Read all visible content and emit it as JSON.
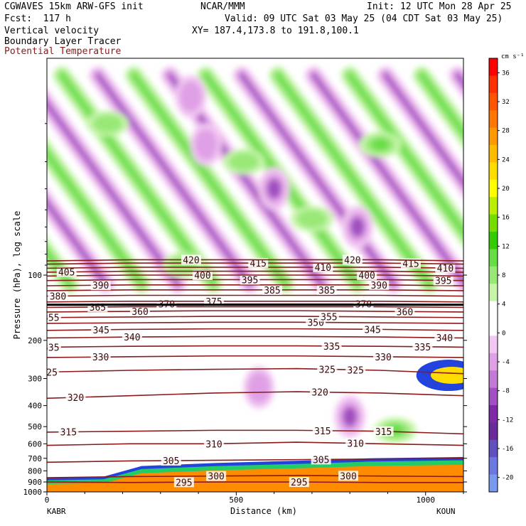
{
  "header": {
    "model": "CGWAVES 15km ARW-GFS init",
    "org": "NCAR/MMM",
    "init": "Init: 12 UTC Mon 28 Apr 25",
    "fcst": "Fcst:  117 h",
    "valid": "Valid: 09 UTC Sat 03 May 25 (04 CDT Sat 03 May 25)",
    "field1": "Vertical velocity",
    "field2": "Boundary Layer Tracer",
    "field3": "Potential Temperature",
    "xy": "XY= 187.4,173.8 to 191.8,100.1"
  },
  "colors": {
    "theta": "#8b1a1a",
    "pbl": "#ff8c00"
  },
  "chart_data": {
    "type": "heatmap",
    "xlabel": "Distance (km)",
    "ylabel": "Pressure (hPa), log scale",
    "xlim": [
      0,
      1100
    ],
    "ylim": [
      1000,
      10
    ],
    "y_scale": "log",
    "x_ticks": [
      0,
      500,
      1000
    ],
    "y_ticks": [
      100,
      200,
      300,
      400,
      500,
      600,
      700,
      800,
      900,
      1000
    ],
    "x_endpoint_labels": [
      "KABR",
      "KOUN"
    ],
    "colorbar": {
      "units": "cm s⁻¹",
      "labels": [
        36,
        32,
        28,
        24,
        20,
        16,
        12,
        8,
        4,
        0,
        -4,
        -8,
        -12,
        -16,
        -20
      ],
      "colors": [
        "#ff0000",
        "#ff3000",
        "#ff5500",
        "#ff7700",
        "#ff9900",
        "#ffbb00",
        "#ffdd00",
        "#ffff00",
        "#bbee00",
        "#77dd00",
        "#33cc00",
        "#66dd44",
        "#99e877",
        "#c6f5aa",
        "#ffffff",
        "#ffffff",
        "#f2c8f2",
        "#e0a0e6",
        "#c27ad4",
        "#a050c0",
        "#7e2aa8",
        "#6a2a9a",
        "#6050c0",
        "#6a78e0",
        "#7a9af0"
      ]
    },
    "theta_contours": [
      {
        "value": 295,
        "label_positions_km": [
          362,
          666
        ],
        "p_hpa": [
          900,
          905,
          900,
          900,
          905,
          905
        ]
      },
      {
        "value": 300,
        "label_positions_km": [
          447,
          796
        ],
        "p_hpa": [
          860,
          850,
          845,
          840,
          845,
          850
        ]
      },
      {
        "value": 305,
        "label_positions_km": [
          328,
          724
        ],
        "p_hpa": [
          730,
          720,
          715,
          710,
          705,
          700
        ]
      },
      {
        "value": 310,
        "label_positions_km": [
          441,
          815
        ],
        "p_hpa": [
          610,
          600,
          600,
          590,
          600,
          610
        ]
      },
      {
        "value": 315,
        "label_positions_km": [
          57,
          728,
          889
        ],
        "p_hpa": [
          530,
          525,
          520,
          520,
          525,
          540
        ]
      },
      {
        "value": 320,
        "label_positions_km": [
          76,
          721
        ],
        "p_hpa": [
          370,
          360,
          350,
          345,
          350,
          360
        ]
      },
      {
        "value": 325,
        "label_positions_km": [
          6,
          740,
          815
        ],
        "p_hpa": [
          280,
          275,
          272,
          270,
          275,
          285
        ]
      },
      {
        "value": 330,
        "label_positions_km": [
          142,
          888
        ],
        "p_hpa": [
          240,
          238,
          236,
          236,
          238,
          240
        ]
      },
      {
        "value": 335,
        "label_positions_km": [
          11,
          752,
          992
        ],
        "p_hpa": [
          215,
          213,
          212,
          212,
          213,
          215
        ]
      },
      {
        "value": 340,
        "label_positions_km": [
          225,
          1050
        ],
        "p_hpa": [
          195,
          193,
          192,
          192,
          193,
          195
        ]
      },
      {
        "value": 345,
        "label_positions_km": [
          143,
          860
        ],
        "p_hpa": [
          180,
          178,
          177,
          177,
          178,
          180
        ]
      },
      {
        "value": 350,
        "label_positions_km": [
          710
        ],
        "p_hpa": [
          167,
          166,
          165,
          165,
          166,
          167
        ]
      },
      {
        "value": 355,
        "label_positions_km": [
          11,
          745
        ],
        "p_hpa": [
          157,
          156,
          155,
          155,
          156,
          157
        ]
      },
      {
        "value": 360,
        "label_positions_km": [
          246,
          945
        ],
        "p_hpa": [
          148,
          147,
          146,
          146,
          147,
          148
        ]
      },
      {
        "value": 365,
        "label_positions_km": [
          134
        ],
        "p_hpa": [
          141,
          140,
          140,
          140,
          140,
          141
        ]
      },
      {
        "value": 370,
        "label_positions_km": [
          316,
          836
        ],
        "p_hpa": [
          137,
          136,
          136,
          136,
          136,
          137
        ]
      },
      {
        "value": 375,
        "label_positions_km": [
          441
        ],
        "p_hpa": [
          133,
          132,
          132,
          132,
          132,
          133
        ]
      },
      {
        "value": 380,
        "label_positions_km": [
          29
        ],
        "p_hpa": [
          125,
          124,
          124,
          124,
          124,
          125
        ]
      },
      {
        "value": 385,
        "label_positions_km": [
          595,
          739
        ],
        "p_hpa": [
          118,
          117,
          117,
          117,
          117,
          118
        ]
      },
      {
        "value": 390,
        "label_positions_km": [
          142,
          877
        ],
        "p_hpa": [
          112,
          111,
          111,
          111,
          111,
          112
        ]
      },
      {
        "value": 395,
        "label_positions_km": [
          536,
          1047
        ],
        "p_hpa": [
          106,
          105,
          105,
          105,
          105,
          106
        ]
      },
      {
        "value": 400,
        "label_positions_km": [
          411,
          845
        ],
        "p_hpa": [
          101,
          100,
          100,
          100,
          100,
          101
        ]
      },
      {
        "value": 405,
        "label_positions_km": [
          52
        ],
        "p_hpa": [
          97,
          96,
          96,
          96,
          96,
          97
        ]
      },
      {
        "value": 410,
        "label_positions_km": [
          729,
          1052
        ],
        "p_hpa": [
          93,
          92,
          92,
          92,
          92,
          93
        ]
      },
      {
        "value": 415,
        "label_positions_km": [
          558,
          961
        ],
        "p_hpa": [
          89,
          88,
          88,
          88,
          88,
          89
        ]
      },
      {
        "value": 420,
        "label_positions_km": [
          381,
          807
        ],
        "p_hpa": [
          86,
          85,
          85,
          85,
          85,
          86
        ]
      }
    ],
    "theta_x_km": [
      0,
      220,
      440,
      660,
      880,
      1100
    ],
    "upward_motion_cells": [
      {
        "x_km": 520,
        "p_hpa": 30,
        "w": 10
      },
      {
        "x_km": 700,
        "p_hpa": 55,
        "w": 10
      },
      {
        "x_km": 360,
        "p_hpa": 90,
        "w": 8
      },
      {
        "x_km": 880,
        "p_hpa": 25,
        "w": 14
      },
      {
        "x_km": 160,
        "p_hpa": 20,
        "w": 6
      },
      {
        "x_km": 920,
        "p_hpa": 520,
        "w": 12
      }
    ],
    "downward_motion_cells": [
      {
        "x_km": 420,
        "p_hpa": 25,
        "w": -10
      },
      {
        "x_km": 600,
        "p_hpa": 40,
        "w": -12
      },
      {
        "x_km": 380,
        "p_hpa": 15,
        "w": -10
      },
      {
        "x_km": 820,
        "p_hpa": 60,
        "w": -12
      },
      {
        "x_km": 560,
        "p_hpa": 330,
        "w": -10
      },
      {
        "x_km": 800,
        "p_hpa": 450,
        "w": -12
      }
    ]
  }
}
